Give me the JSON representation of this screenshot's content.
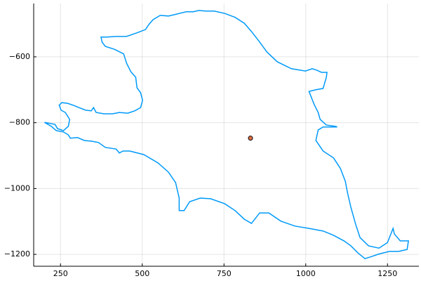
{
  "chart_data": {
    "type": "line",
    "xlim": [
      168,
      1346
    ],
    "ylim": [
      -1236,
      -438
    ],
    "xticks": [
      250,
      500,
      750,
      1000,
      1250
    ],
    "yticks": [
      {
        "value": -1200,
        "label": "−1200"
      },
      {
        "value": -1000,
        "label": "−1000"
      },
      {
        "value": -800,
        "label": "−800"
      },
      {
        "value": -600,
        "label": "−600"
      }
    ],
    "grid": true,
    "series": [
      {
        "type": "line",
        "color": "#009af9",
        "x": [
          201,
          233,
          241,
          259,
          274,
          278,
          265,
          252,
          246,
          254,
          271,
          289,
          306,
          327,
          344,
          351,
          359,
          383,
          409,
          430,
          456,
          477,
          495,
          501,
          495,
          484,
          480,
          465,
          452,
          443,
          415,
          387,
          377,
          374,
          392,
          420,
          452,
          484,
          510,
          520,
          533,
          555,
          580,
          606,
          634,
          656,
          673,
          694,
          720,
          752,
          784,
          812,
          834,
          859,
          881,
          913,
          956,
          999,
          1020,
          1035,
          1048,
          1065,
          1063,
          1053,
          1031,
          1010,
          1025,
          1038,
          1044,
          1063,
          1091,
          1096,
          1053,
          1038,
          1031,
          1053,
          1085,
          1106,
          1121,
          1128,
          1138,
          1153,
          1166,
          1192,
          1224,
          1250,
          1267,
          1271,
          1289,
          1314,
          1310,
          1284,
          1256,
          1235,
          1220,
          1203,
          1181,
          1160,
          1138,
          1117,
          1085,
          1053,
          1010,
          967,
          924,
          887,
          859,
          834,
          812,
          784,
          752,
          709,
          677,
          645,
          628,
          613,
          613,
          602,
          580,
          548,
          505,
          462,
          441,
          430,
          420,
          387,
          366,
          344,
          323,
          302,
          280,
          274,
          259,
          237,
          222,
          201
        ],
        "y": [
          -799,
          -805,
          -818,
          -824,
          -811,
          -790,
          -769,
          -762,
          -747,
          -739,
          -741,
          -747,
          -754,
          -762,
          -764,
          -754,
          -769,
          -773,
          -773,
          -769,
          -771,
          -764,
          -754,
          -732,
          -709,
          -694,
          -662,
          -645,
          -619,
          -591,
          -577,
          -568,
          -555,
          -540,
          -540,
          -538,
          -538,
          -527,
          -517,
          -502,
          -487,
          -474,
          -476,
          -470,
          -463,
          -463,
          -459,
          -461,
          -461,
          -468,
          -480,
          -498,
          -523,
          -555,
          -585,
          -615,
          -636,
          -643,
          -636,
          -641,
          -647,
          -647,
          -662,
          -696,
          -700,
          -705,
          -743,
          -769,
          -790,
          -807,
          -811,
          -813,
          -813,
          -822,
          -854,
          -886,
          -907,
          -939,
          -978,
          -1014,
          -1057,
          -1110,
          -1149,
          -1174,
          -1181,
          -1164,
          -1121,
          -1138,
          -1159,
          -1159,
          -1185,
          -1191,
          -1191,
          -1196,
          -1200,
          -1206,
          -1213,
          -1196,
          -1174,
          -1159,
          -1142,
          -1129,
          -1121,
          -1114,
          -1099,
          -1074,
          -1074,
          -1106,
          -1093,
          -1067,
          -1046,
          -1031,
          -1029,
          -1040,
          -1067,
          -1067,
          -1029,
          -982,
          -950,
          -922,
          -897,
          -886,
          -886,
          -892,
          -880,
          -875,
          -860,
          -856,
          -854,
          -845,
          -847,
          -837,
          -828,
          -824,
          -811,
          -799
        ]
      },
      {
        "type": "scatter",
        "color": "#e26f46",
        "x": [
          831
        ],
        "y": [
          -847
        ]
      }
    ]
  }
}
